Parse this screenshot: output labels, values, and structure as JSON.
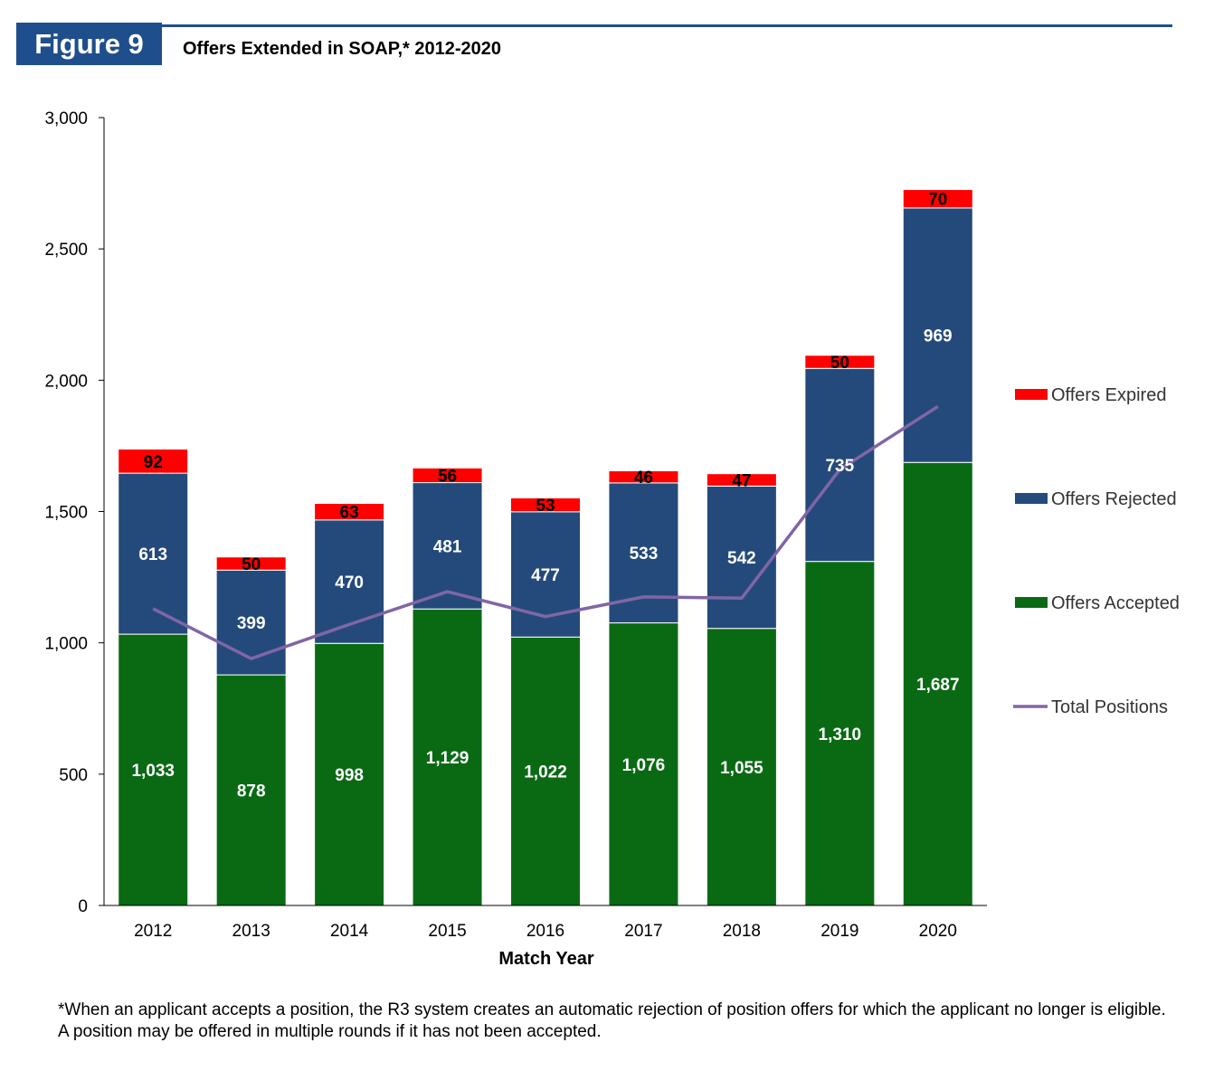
{
  "header": {
    "figure_label": "Figure 9",
    "title": "Offers Extended in SOAP,* 2012-2020"
  },
  "footnote": "*When an applicant accepts a position, the R3 system creates an automatic rejection of position offers for which the applicant no longer is eligible. A position may be offered in multiple rounds if it has not been accepted.",
  "colors": {
    "accepted": "#0a6a14",
    "rejected": "#244a7b",
    "expired": "#ff0000",
    "total": "#8066a6",
    "brand": "#1f4e8c"
  },
  "chart_data": {
    "type": "bar",
    "stacked": true,
    "xlabel": "Match Year",
    "ylabel": "",
    "ylim": [
      0,
      3000
    ],
    "yticks": [
      0,
      500,
      1000,
      1500,
      2000,
      2500,
      3000
    ],
    "ytick_labels": [
      "0",
      "500",
      "1,000",
      "1,500",
      "2,000",
      "2,500",
      "3,000"
    ],
    "grid": false,
    "legend_position": "right",
    "categories": [
      "2012",
      "2013",
      "2014",
      "2015",
      "2016",
      "2017",
      "2018",
      "2019",
      "2020"
    ],
    "series": [
      {
        "name": "Offers Accepted",
        "kind": "bar",
        "values": [
          1033,
          878,
          998,
          1129,
          1022,
          1076,
          1055,
          1310,
          1687
        ],
        "labels": [
          "1,033",
          "878",
          "998",
          "1,129",
          "1,022",
          "1,076",
          "1,055",
          "1,310",
          "1,687"
        ]
      },
      {
        "name": "Offers Rejected",
        "kind": "bar",
        "values": [
          613,
          399,
          470,
          481,
          477,
          533,
          542,
          735,
          969
        ],
        "labels": [
          "613",
          "399",
          "470",
          "481",
          "477",
          "533",
          "542",
          "735",
          "969"
        ]
      },
      {
        "name": "Offers Expired",
        "kind": "bar",
        "values": [
          92,
          50,
          63,
          56,
          53,
          46,
          47,
          50,
          70
        ],
        "labels": [
          "92",
          "50",
          "63",
          "56",
          "53",
          "46",
          "47",
          "50",
          "70"
        ]
      },
      {
        "name": "Total Positions",
        "kind": "line",
        "values": [
          1130,
          940,
          1070,
          1195,
          1100,
          1175,
          1170,
          1660,
          1900
        ]
      }
    ],
    "legend": [
      "Offers Expired",
      "Offers Rejected",
      "Offers Accepted",
      "Total Positions"
    ]
  }
}
